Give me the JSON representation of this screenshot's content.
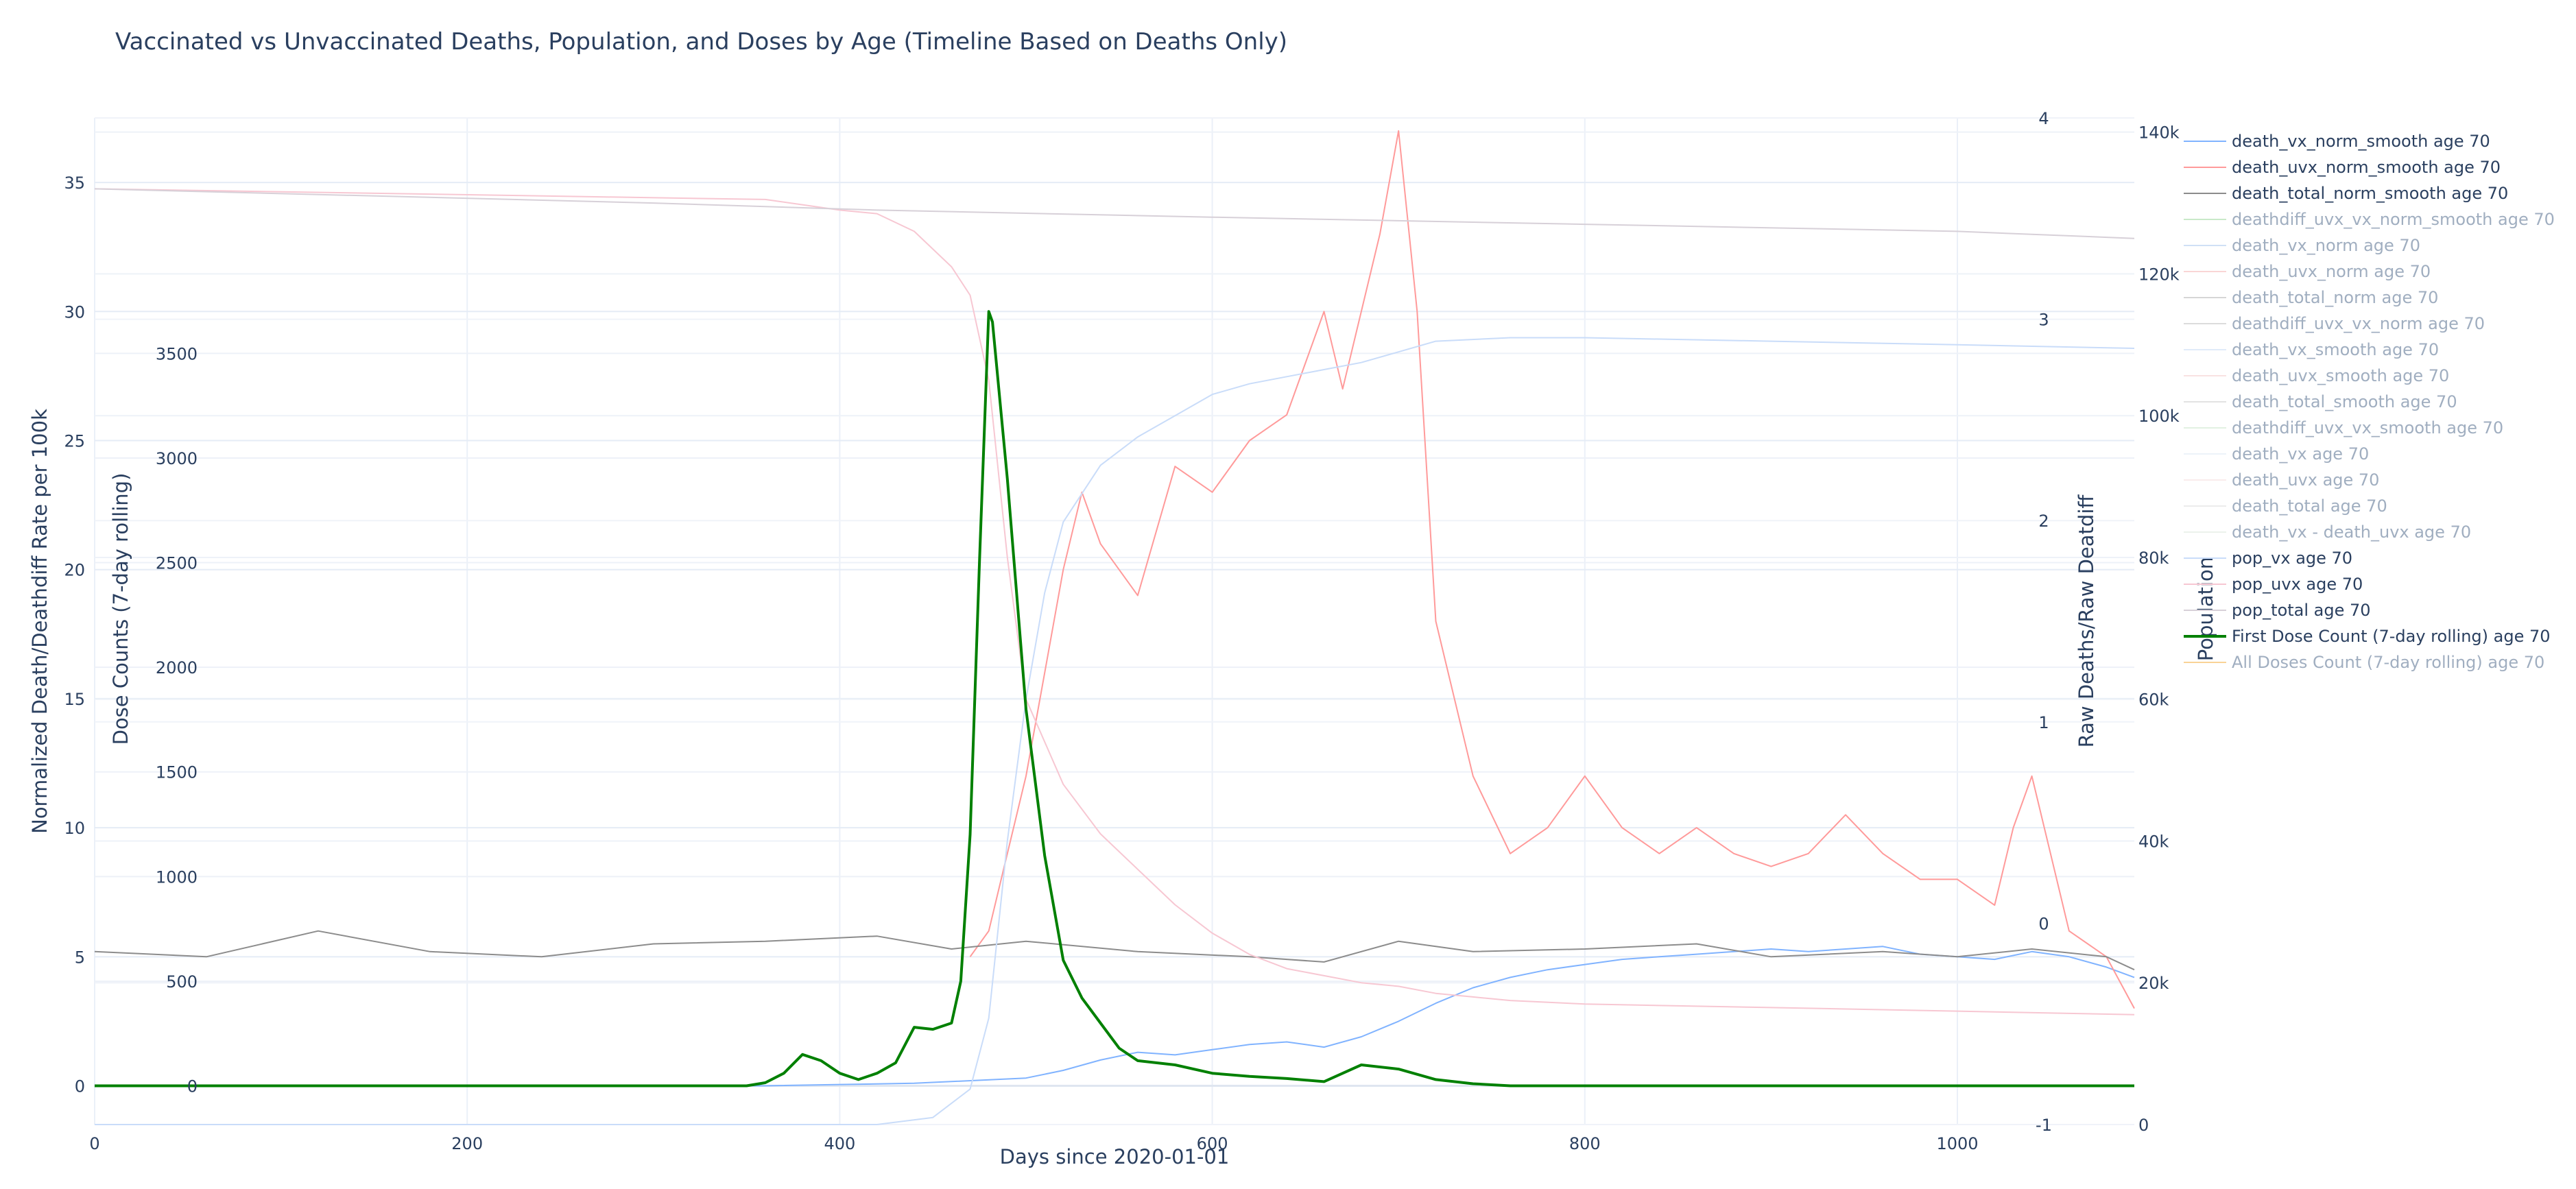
{
  "chart_data": {
    "type": "line",
    "title": "Vaccinated vs Unvaccinated Deaths, Population, and Doses by Age (Timeline Based on Deaths Only)",
    "xlabel": "Days since 2020-01-01",
    "xlim": [
      0,
      1095
    ],
    "xticks": [
      0,
      200,
      400,
      600,
      800,
      1000
    ],
    "axes": {
      "y": {
        "label": "Normalized Death/Deathdiff Rate per 100k",
        "range": [
          -1.5,
          37.5
        ],
        "ticks": [
          0,
          5,
          10,
          15,
          20,
          25,
          30,
          35
        ]
      },
      "y_doses": {
        "label": "Dose Counts (7-day rolling)",
        "range": [
          -185,
          4625
        ],
        "ticks": [
          0,
          500,
          1000,
          1500,
          2000,
          2500,
          3000,
          3500
        ]
      },
      "y_raw": {
        "label": "Raw Deaths/Raw Deatdiff",
        "range": [
          -1,
          4
        ],
        "ticks": [
          -1,
          0,
          1,
          2,
          3,
          4
        ]
      },
      "y_pop": {
        "label": "Population",
        "range": [
          0,
          142000
        ],
        "ticks": [
          "0",
          "20k",
          "40k",
          "60k",
          "80k",
          "100k",
          "120k",
          "140k"
        ]
      }
    },
    "legend_position": "right",
    "series": [
      {
        "name": "death_vx_norm_smooth age 70",
        "color": "#80b3ff",
        "visible": true,
        "axis": "y",
        "points": [
          [
            0,
            0
          ],
          [
            360,
            0
          ],
          [
            440,
            0.1
          ],
          [
            500,
            0.3
          ],
          [
            520,
            0.6
          ],
          [
            540,
            1.0
          ],
          [
            560,
            1.3
          ],
          [
            580,
            1.2
          ],
          [
            600,
            1.4
          ],
          [
            620,
            1.6
          ],
          [
            640,
            1.7
          ],
          [
            660,
            1.5
          ],
          [
            680,
            1.9
          ],
          [
            700,
            2.5
          ],
          [
            720,
            3.2
          ],
          [
            740,
            3.8
          ],
          [
            760,
            4.2
          ],
          [
            780,
            4.5
          ],
          [
            800,
            4.7
          ],
          [
            820,
            4.9
          ],
          [
            840,
            5.0
          ],
          [
            860,
            5.1
          ],
          [
            880,
            5.2
          ],
          [
            900,
            5.3
          ],
          [
            920,
            5.2
          ],
          [
            940,
            5.3
          ],
          [
            960,
            5.4
          ],
          [
            980,
            5.1
          ],
          [
            1000,
            5.0
          ],
          [
            1020,
            4.9
          ],
          [
            1040,
            5.2
          ],
          [
            1060,
            5.0
          ],
          [
            1080,
            4.6
          ],
          [
            1095,
            4.2
          ]
        ]
      },
      {
        "name": "death_uvx_norm_smooth age 70",
        "color": "#ff9a9a",
        "visible": true,
        "axis": "y",
        "points": [
          [
            470,
            5.0
          ],
          [
            480,
            6.0
          ],
          [
            490,
            9.0
          ],
          [
            500,
            12.0
          ],
          [
            510,
            16.0
          ],
          [
            520,
            20.0
          ],
          [
            530,
            23.0
          ],
          [
            540,
            21.0
          ],
          [
            560,
            19.0
          ],
          [
            580,
            24.0
          ],
          [
            600,
            23.0
          ],
          [
            620,
            25.0
          ],
          [
            640,
            26.0
          ],
          [
            660,
            30.0
          ],
          [
            670,
            27.0
          ],
          [
            690,
            33.0
          ],
          [
            700,
            37.0
          ],
          [
            710,
            30.0
          ],
          [
            720,
            18.0
          ],
          [
            740,
            12.0
          ],
          [
            760,
            9.0
          ],
          [
            780,
            10.0
          ],
          [
            800,
            12.0
          ],
          [
            820,
            10.0
          ],
          [
            840,
            9.0
          ],
          [
            860,
            10.0
          ],
          [
            880,
            9.0
          ],
          [
            900,
            8.5
          ],
          [
            920,
            9.0
          ],
          [
            940,
            10.5
          ],
          [
            960,
            9.0
          ],
          [
            980,
            8.0
          ],
          [
            1000,
            8.0
          ],
          [
            1020,
            7.0
          ],
          [
            1030,
            10.0
          ],
          [
            1040,
            12.0
          ],
          [
            1050,
            9.0
          ],
          [
            1060,
            6.0
          ],
          [
            1080,
            5.0
          ],
          [
            1095,
            3.0
          ]
        ]
      },
      {
        "name": "death_total_norm_smooth age 70",
        "color": "#8c8c8c",
        "visible": true,
        "axis": "y",
        "points": [
          [
            0,
            5.2
          ],
          [
            60,
            5.0
          ],
          [
            120,
            6.0
          ],
          [
            180,
            5.2
          ],
          [
            240,
            5.0
          ],
          [
            300,
            5.5
          ],
          [
            360,
            5.6
          ],
          [
            420,
            5.8
          ],
          [
            460,
            5.3
          ],
          [
            500,
            5.6
          ],
          [
            560,
            5.2
          ],
          [
            620,
            5.0
          ],
          [
            660,
            4.8
          ],
          [
            700,
            5.6
          ],
          [
            740,
            5.2
          ],
          [
            800,
            5.3
          ],
          [
            860,
            5.5
          ],
          [
            900,
            5.0
          ],
          [
            960,
            5.2
          ],
          [
            1000,
            5.0
          ],
          [
            1040,
            5.3
          ],
          [
            1080,
            5.0
          ],
          [
            1095,
            4.5
          ]
        ]
      },
      {
        "name": "deathdiff_uvx_vx_norm_smooth age 70",
        "color": "#9ed89e",
        "visible": false,
        "axis": "y",
        "points": []
      },
      {
        "name": "death_vx_norm age 70",
        "color": "#aac8f0",
        "visible": false,
        "axis": "y",
        "points": []
      },
      {
        "name": "death_uvx_norm age 70",
        "color": "#f5b3b3",
        "visible": false,
        "axis": "y",
        "points": []
      },
      {
        "name": "death_total_norm age 70",
        "color": "#b5b5b5",
        "visible": false,
        "axis": "y",
        "points": []
      },
      {
        "name": "deathdiff_uvx_vx_norm age 70",
        "color": "#c0c0c0",
        "visible": false,
        "axis": "y",
        "points": []
      },
      {
        "name": "death_vx_smooth age 70",
        "color": "#c8dcf5",
        "visible": false,
        "axis": "y_raw",
        "points": []
      },
      {
        "name": "death_uvx_smooth age 70",
        "color": "#f5cccc",
        "visible": false,
        "axis": "y_raw",
        "points": []
      },
      {
        "name": "death_total_smooth age 70",
        "color": "#cccccc",
        "visible": false,
        "axis": "y_raw",
        "points": []
      },
      {
        "name": "deathdiff_uvx_vx_smooth age 70",
        "color": "#cce6cc",
        "visible": false,
        "axis": "y_raw",
        "points": []
      },
      {
        "name": "death_vx age 70",
        "color": "#dde8f5",
        "visible": false,
        "axis": "y_raw",
        "points": []
      },
      {
        "name": "death_uvx age 70",
        "color": "#f5dddd",
        "visible": false,
        "axis": "y_raw",
        "points": []
      },
      {
        "name": "death_total age 70",
        "color": "#dddddd",
        "visible": false,
        "axis": "y_raw",
        "points": []
      },
      {
        "name": "death_vx - death_uvx age 70",
        "color": "#dde8dd",
        "visible": false,
        "axis": "y_raw",
        "points": []
      },
      {
        "name": "pop_vx age 70",
        "color": "#c9dcf9",
        "visible": true,
        "axis": "y_pop",
        "points": [
          [
            0,
            0
          ],
          [
            360,
            0
          ],
          [
            420,
            0
          ],
          [
            450,
            1000
          ],
          [
            470,
            5000
          ],
          [
            480,
            15000
          ],
          [
            490,
            40000
          ],
          [
            500,
            60000
          ],
          [
            510,
            75000
          ],
          [
            520,
            85000
          ],
          [
            540,
            93000
          ],
          [
            560,
            97000
          ],
          [
            580,
            100000
          ],
          [
            600,
            103000
          ],
          [
            620,
            104500
          ],
          [
            640,
            105500
          ],
          [
            660,
            106500
          ],
          [
            680,
            107500
          ],
          [
            700,
            109000
          ],
          [
            720,
            110500
          ],
          [
            760,
            111000
          ],
          [
            800,
            111000
          ],
          [
            900,
            110500
          ],
          [
            1000,
            110000
          ],
          [
            1095,
            109500
          ]
        ]
      },
      {
        "name": "pop_uvx age 70",
        "color": "#f7c7d2",
        "visible": true,
        "axis": "y_pop",
        "points": [
          [
            0,
            132000
          ],
          [
            360,
            130500
          ],
          [
            400,
            129000
          ],
          [
            420,
            128500
          ],
          [
            440,
            126000
          ],
          [
            460,
            121000
          ],
          [
            470,
            117000
          ],
          [
            480,
            105000
          ],
          [
            490,
            80000
          ],
          [
            500,
            60000
          ],
          [
            520,
            48000
          ],
          [
            540,
            41000
          ],
          [
            560,
            36000
          ],
          [
            580,
            31000
          ],
          [
            600,
            27000
          ],
          [
            620,
            24000
          ],
          [
            640,
            22000
          ],
          [
            660,
            21000
          ],
          [
            680,
            20000
          ],
          [
            700,
            19500
          ],
          [
            720,
            18500
          ],
          [
            740,
            18000
          ],
          [
            760,
            17500
          ],
          [
            800,
            17000
          ],
          [
            900,
            16500
          ],
          [
            1000,
            16000
          ],
          [
            1095,
            15500
          ]
        ]
      },
      {
        "name": "pop_total age 70",
        "color": "#d7d0d8",
        "visible": true,
        "axis": "y_pop",
        "points": [
          [
            0,
            132000
          ],
          [
            300,
            130000
          ],
          [
            420,
            129000
          ],
          [
            600,
            128000
          ],
          [
            800,
            127000
          ],
          [
            1000,
            126000
          ],
          [
            1095,
            125000
          ]
        ]
      },
      {
        "name": "First Dose Count (7-day rolling) age 70",
        "color": "#008000",
        "visible": true,
        "axis": "y_doses",
        "points": [
          [
            0,
            0
          ],
          [
            350,
            0
          ],
          [
            360,
            15
          ],
          [
            370,
            60
          ],
          [
            380,
            150
          ],
          [
            390,
            120
          ],
          [
            400,
            60
          ],
          [
            410,
            30
          ],
          [
            420,
            60
          ],
          [
            430,
            110
          ],
          [
            440,
            280
          ],
          [
            450,
            270
          ],
          [
            460,
            300
          ],
          [
            465,
            500
          ],
          [
            470,
            1200
          ],
          [
            475,
            2500
          ],
          [
            480,
            3700
          ],
          [
            482,
            3650
          ],
          [
            490,
            2900
          ],
          [
            500,
            1800
          ],
          [
            510,
            1100
          ],
          [
            520,
            600
          ],
          [
            530,
            420
          ],
          [
            540,
            300
          ],
          [
            550,
            180
          ],
          [
            560,
            120
          ],
          [
            580,
            100
          ],
          [
            600,
            60
          ],
          [
            620,
            45
          ],
          [
            640,
            35
          ],
          [
            660,
            20
          ],
          [
            680,
            100
          ],
          [
            700,
            80
          ],
          [
            720,
            30
          ],
          [
            740,
            10
          ],
          [
            760,
            0
          ],
          [
            1095,
            0
          ]
        ]
      },
      {
        "name": "All Doses Count (7-day rolling) age 70",
        "color": "#f5b041",
        "visible": false,
        "axis": "y_doses",
        "points": []
      }
    ]
  }
}
